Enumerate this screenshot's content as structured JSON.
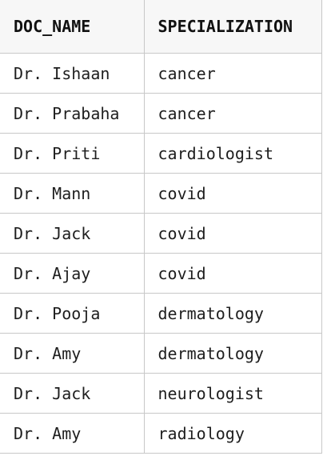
{
  "table": {
    "columns": [
      "DOC_NAME",
      "SPECIALIZATION"
    ],
    "rows": [
      [
        "Dr. Ishaan",
        "cancer"
      ],
      [
        "Dr. Prabaha",
        "cancer"
      ],
      [
        "Dr. Priti",
        "cardiologist"
      ],
      [
        "Dr. Mann",
        "covid"
      ],
      [
        "Dr. Jack",
        "covid"
      ],
      [
        "Dr. Ajay",
        "covid"
      ],
      [
        "Dr. Pooja",
        "dermatology"
      ],
      [
        "Dr. Amy",
        "dermatology"
      ],
      [
        "Dr. Jack",
        "neurologist"
      ],
      [
        "Dr. Amy",
        "radiology"
      ]
    ]
  }
}
